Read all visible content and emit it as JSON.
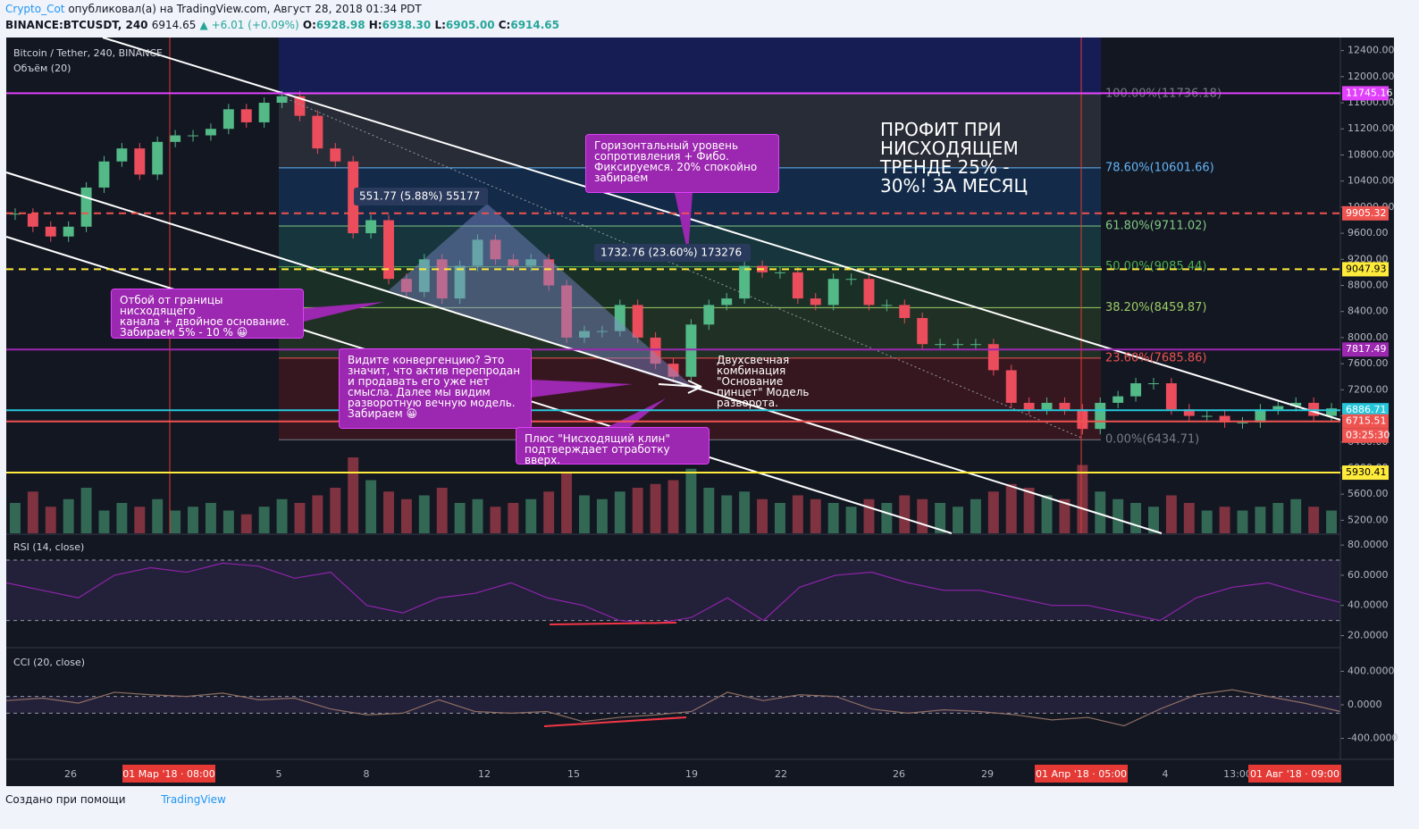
{
  "header": {
    "author": "Crypto_Cot",
    "published": "опубликовал(а) на TradingView.com, Август 28, 2018 01:34 PDT",
    "symbol": "BINANCE:BTCUSDT, 240",
    "last": "6914.65",
    "change": "▲ +6.01 (+0.09%)",
    "o_label": "O:",
    "o": "6928.98",
    "h_label": "H:",
    "h": "6938.30",
    "l_label": "L:",
    "l": "6905.00",
    "c_label": "C:",
    "c": "6914.65"
  },
  "chart_data": {
    "type": "candlestick",
    "title": "Bitcoin / Tether, 240, BINANCE",
    "volume_label": "Объём (20)",
    "up_color": "#53b987",
    "down_color": "#eb4d5c",
    "closes": [
      9900,
      9700,
      9550,
      9700,
      10300,
      10700,
      10900,
      10500,
      11000,
      11100,
      11100,
      11200,
      11500,
      11300,
      11600,
      11700,
      11400,
      10900,
      10700,
      9600,
      9800,
      8900,
      8700,
      9200,
      8600,
      9100,
      9500,
      9200,
      9100,
      9200,
      8800,
      8000,
      8100,
      8100,
      8500,
      8000,
      7600,
      7400,
      8200,
      8500,
      8600,
      9100,
      9000,
      9000,
      8600,
      8500,
      8900,
      8900,
      8500,
      8500,
      8300,
      7900,
      7900,
      7900,
      7900,
      7500,
      7000,
      6900,
      7000,
      6900,
      6600,
      7000,
      7100,
      7300,
      7300,
      6900,
      6800,
      6800,
      6700,
      6700,
      6900,
      6950,
      7000,
      6800,
      6915
    ],
    "volumes": [
      40,
      55,
      35,
      45,
      60,
      30,
      40,
      35,
      45,
      30,
      35,
      40,
      30,
      25,
      35,
      45,
      40,
      50,
      60,
      100,
      70,
      55,
      45,
      50,
      60,
      40,
      45,
      35,
      40,
      45,
      55,
      80,
      50,
      45,
      55,
      60,
      65,
      70,
      85,
      60,
      50,
      55,
      45,
      40,
      50,
      45,
      40,
      35,
      45,
      40,
      50,
      45,
      40,
      35,
      45,
      55,
      65,
      60,
      50,
      45,
      90,
      55,
      45,
      40,
      35,
      50,
      40,
      30,
      35,
      30,
      35,
      40,
      45,
      35,
      30
    ],
    "ylim": [
      5000,
      12600
    ],
    "yticks": [
      {
        "value": 12400,
        "label": "12400.00"
      },
      {
        "value": 12000,
        "label": "12000.00"
      },
      {
        "value": 11600,
        "label": "11600.00"
      },
      {
        "value": 11200,
        "label": "11200.00"
      },
      {
        "value": 10800,
        "label": "10800.00"
      },
      {
        "value": 10400,
        "label": "10400.00"
      },
      {
        "value": 10000,
        "label": "10000.00"
      },
      {
        "value": 9600,
        "label": "9600.00"
      },
      {
        "value": 9200,
        "label": "9200.00"
      },
      {
        "value": 8800,
        "label": "8800.00"
      },
      {
        "value": 8400,
        "label": "8400.00"
      },
      {
        "value": 8000,
        "label": "8000.00"
      },
      {
        "value": 7600,
        "label": "7600.00"
      },
      {
        "value": 7200,
        "label": "7200.00"
      },
      {
        "value": 6800,
        "label": "6800.00"
      },
      {
        "value": 6400,
        "label": "6400.00"
      },
      {
        "value": 6000,
        "label": "6000.00"
      },
      {
        "value": 5600,
        "label": "5600.00"
      },
      {
        "value": 5200,
        "label": "5200.00"
      }
    ],
    "levels": [
      {
        "value": 11745.16,
        "color": "#e040fb",
        "dash": false
      },
      {
        "value": 9905.32,
        "color": "#ef5350",
        "dash": true
      },
      {
        "value": 9047.93,
        "color": "#ffeb3b",
        "dash": true
      },
      {
        "value": 7817.49,
        "color": "#9c27b0",
        "dash": false
      },
      {
        "value": 6886.71,
        "color": "#26c6da",
        "dash": false
      },
      {
        "value": 6715.51,
        "color": "#ef5350",
        "dash": false
      },
      {
        "value": 5930.41,
        "color": "#ffeb3b",
        "dash": false
      }
    ],
    "countdown": "03:25:30",
    "fib": [
      {
        "value": 11736.18,
        "label": "100.00%(11736.18)",
        "color": "#787b86"
      },
      {
        "value": 10601.66,
        "label": "78.60%(10601.66)",
        "color": "#64b5f6"
      },
      {
        "value": 9711.02,
        "label": "61.80%(9711.02)",
        "color": "#81c784"
      },
      {
        "value": 9085.44,
        "label": "50.00%(9085.44)",
        "color": "#4caf50"
      },
      {
        "value": 8459.87,
        "label": "38.20%(8459.87)",
        "color": "#9ccc65"
      },
      {
        "value": 7685.86,
        "label": "23.60%(7685.86)",
        "color": "#ef5350"
      },
      {
        "value": 6434.71,
        "label": "0.00%(6434.71)",
        "color": "#787b86"
      }
    ],
    "x_labels": [
      {
        "label": "26",
        "highlight": false
      },
      {
        "label": "01 Мар '18 · 08:00",
        "highlight": true
      },
      {
        "label": "5",
        "highlight": false
      },
      {
        "label": "8",
        "highlight": false
      },
      {
        "label": "12",
        "highlight": false
      },
      {
        "label": "15",
        "highlight": false
      },
      {
        "label": "19",
        "highlight": false
      },
      {
        "label": "22",
        "highlight": false
      },
      {
        "label": "26",
        "highlight": false
      },
      {
        "label": "29",
        "highlight": false
      },
      {
        "label": "01 Апр '18 · 05:00",
        "highlight": true
      },
      {
        "label": "4",
        "highlight": false
      },
      {
        "label": "13:00",
        "highlight": false
      },
      {
        "label": "01 Авг '18 · 09:00",
        "highlight": true
      }
    ],
    "rsi": {
      "title": "RSI (14, close)",
      "values": [
        55,
        50,
        45,
        60,
        65,
        62,
        68,
        66,
        58,
        62,
        40,
        35,
        45,
        48,
        55,
        45,
        40,
        30,
        28,
        32,
        45,
        30,
        52,
        60,
        62,
        55,
        50,
        50,
        45,
        40,
        40,
        35,
        30,
        45,
        52,
        55,
        48,
        42
      ],
      "ylim": [
        12,
        86
      ],
      "yticks": [
        {
          "value": 80,
          "label": "80.0000"
        },
        {
          "value": 60,
          "label": "60.0000"
        },
        {
          "value": 40,
          "label": "40.0000"
        },
        {
          "value": 20,
          "label": "20.0000"
        }
      ],
      "bands": [
        70,
        30
      ]
    },
    "cci": {
      "title": "CCI (20, close)",
      "values": [
        50,
        80,
        20,
        150,
        120,
        100,
        140,
        60,
        80,
        -50,
        -120,
        -100,
        60,
        -80,
        -100,
        -80,
        -200,
        -150,
        -120,
        -80,
        150,
        50,
        120,
        100,
        -50,
        -100,
        -60,
        -80,
        -120,
        -180,
        -150,
        -250,
        -50,
        120,
        180,
        100,
        20,
        -80
      ],
      "ylim": [
        -650,
        650
      ],
      "yticks": [
        {
          "value": 400,
          "label": "400.0000"
        },
        {
          "value": 0,
          "label": "0.0000"
        },
        {
          "value": -400,
          "label": "-400.0000"
        }
      ],
      "bands": [
        100,
        -100
      ]
    }
  },
  "annotations": {
    "measure1": "551.77 (5.88%) 55177",
    "measure2": "1732.76 (23.60%) 173276",
    "callout1": "Отбой от границы нисходящего\nканала + двойное основание.\nЗабираем 5% - 10 % 😀",
    "callout2": "Видите конвергенцию? Это\nзначит, что актив перепродан\nи продавать его уже нет\nсмысла. Далее мы видим\nразворотную вечную модель.\nЗабираем 😀",
    "callout3": " Горизонтальный уровень\nсопротивления + Фибо.\nФиксируемся. 20% спокойно\nзабираем",
    "callout4": "Плюс \"Нисходящий клин\"\nподтверждает отработку вверх.",
    "note": "Двухсвечная\nкомбинация\n\"Основание\nпинцет\" Модель\nразворота.",
    "big": "ПРОФИТ ПРИ\nНИСХОДЯЩЕМ\nТРЕНДЕ 25% -\n30%! ЗА МЕСЯЦ"
  },
  "footer": {
    "made": "Создано при помощи",
    "brand": "TradingView"
  }
}
